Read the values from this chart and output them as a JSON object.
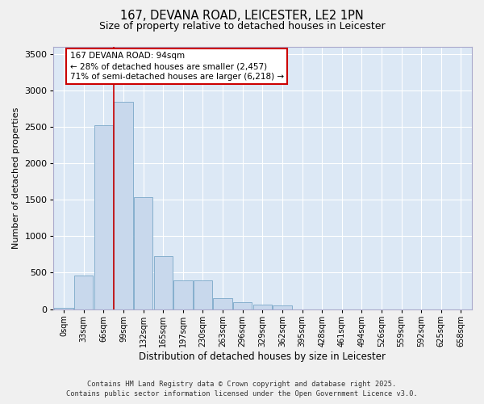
{
  "title1": "167, DEVANA ROAD, LEICESTER, LE2 1PN",
  "title2": "Size of property relative to detached houses in Leicester",
  "xlabel": "Distribution of detached houses by size in Leicester",
  "ylabel": "Number of detached properties",
  "categories": [
    "0sqm",
    "33sqm",
    "66sqm",
    "99sqm",
    "132sqm",
    "165sqm",
    "197sqm",
    "230sqm",
    "263sqm",
    "296sqm",
    "329sqm",
    "362sqm",
    "395sqm",
    "428sqm",
    "461sqm",
    "494sqm",
    "526sqm",
    "559sqm",
    "592sqm",
    "625sqm",
    "658sqm"
  ],
  "bar_heights": [
    20,
    460,
    2520,
    2840,
    1530,
    730,
    390,
    390,
    155,
    95,
    60,
    50,
    0,
    0,
    0,
    0,
    0,
    0,
    0,
    0,
    0
  ],
  "bar_color": "#c8d8ec",
  "bar_edge_color": "#7aa8c8",
  "vline_color": "#cc0000",
  "annotation_title": "167 DEVANA ROAD: 94sqm",
  "annotation_line1": "← 28% of detached houses are smaller (2,457)",
  "annotation_line2": "71% of semi-detached houses are larger (6,218) →",
  "annotation_box_edgecolor": "#cc0000",
  "ylim": [
    0,
    3600
  ],
  "yticks": [
    0,
    500,
    1000,
    1500,
    2000,
    2500,
    3000,
    3500
  ],
  "footer1": "Contains HM Land Registry data © Crown copyright and database right 2025.",
  "footer2": "Contains public sector information licensed under the Open Government Licence v3.0.",
  "plot_bg_color": "#dce8f5",
  "fig_bg_color": "#f0f0f0",
  "grid_color": "#ffffff",
  "spine_color": "#aaaacc"
}
